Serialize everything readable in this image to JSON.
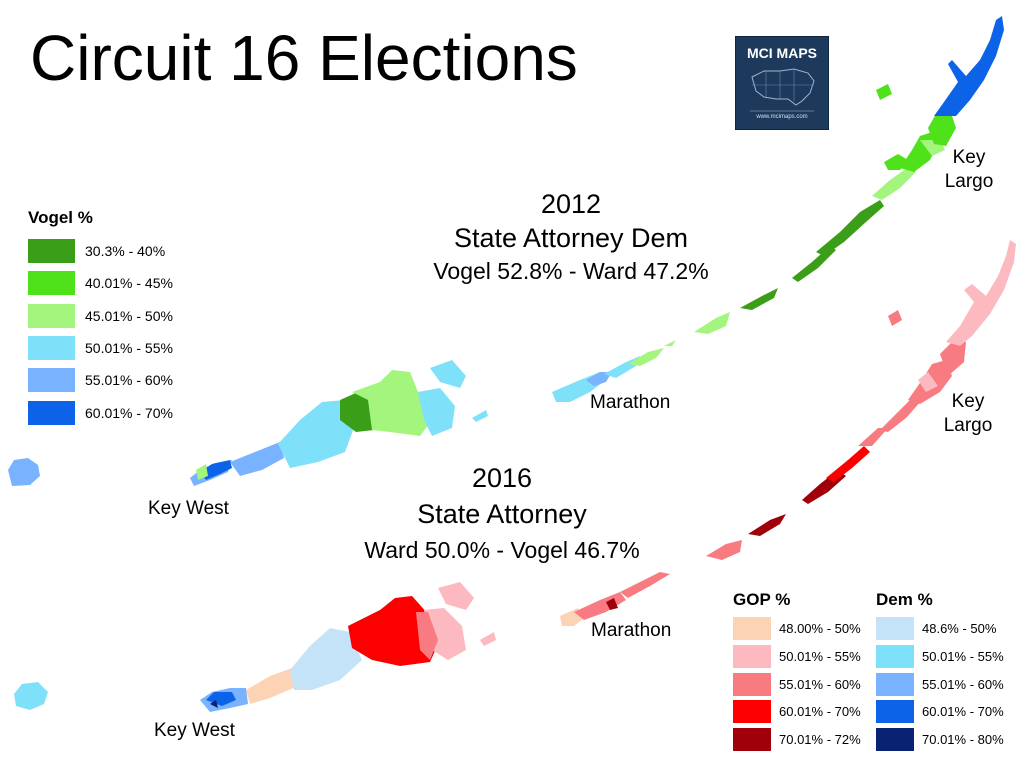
{
  "title": "Circuit 16 Elections",
  "logo": {
    "text": "MCI MAPS",
    "url_text": "www.mcimaps.com"
  },
  "map_2012": {
    "year": "2012",
    "race": "State Attorney Dem",
    "result": "Vogel 52.8% - Ward 47.2%",
    "labels": {
      "key_west": "Key West",
      "marathon": "Marathon",
      "key_largo_1": "Key",
      "key_largo_2": "Largo"
    }
  },
  "map_2016": {
    "year": "2016",
    "race": "State Attorney",
    "result": "Ward 50.0% - Vogel 46.7%",
    "labels": {
      "key_west": "Key West",
      "marathon": "Marathon",
      "key_largo_1": "Key",
      "key_largo_2": "Largo"
    }
  },
  "legend_vogel": {
    "title": "Vogel %",
    "items": [
      {
        "label": "30.3% - 40%",
        "color": "#3a9e18"
      },
      {
        "label": "40.01% - 45%",
        "color": "#4fe21a"
      },
      {
        "label": "45.01% - 50%",
        "color": "#a3f57e"
      },
      {
        "label": "50.01% - 55%",
        "color": "#7fe0f9"
      },
      {
        "label": "55.01% - 60%",
        "color": "#79b2ff"
      },
      {
        "label": "60.01% - 70%",
        "color": "#0d63e8"
      }
    ]
  },
  "legend_gop": {
    "title": "GOP %",
    "items": [
      {
        "label": "48.00% - 50%",
        "color": "#fdd3b6"
      },
      {
        "label": "50.01% - 55%",
        "color": "#fcb9bf"
      },
      {
        "label": "55.01% - 60%",
        "color": "#f77b80"
      },
      {
        "label": "60.01% - 70%",
        "color": "#fc0000"
      },
      {
        "label": "70.01% - 72%",
        "color": "#a0000a"
      }
    ]
  },
  "legend_dem": {
    "title": "Dem %",
    "items": [
      {
        "label": "48.6% - 50%",
        "color": "#c4e3f8"
      },
      {
        "label": "50.01% - 55%",
        "color": "#7fe0f9"
      },
      {
        "label": "55.01% - 60%",
        "color": "#79b2ff"
      },
      {
        "label": "60.01% - 70%",
        "color": "#0d63e8"
      },
      {
        "label": "70.01% - 80%",
        "color": "#0a2272"
      }
    ]
  }
}
